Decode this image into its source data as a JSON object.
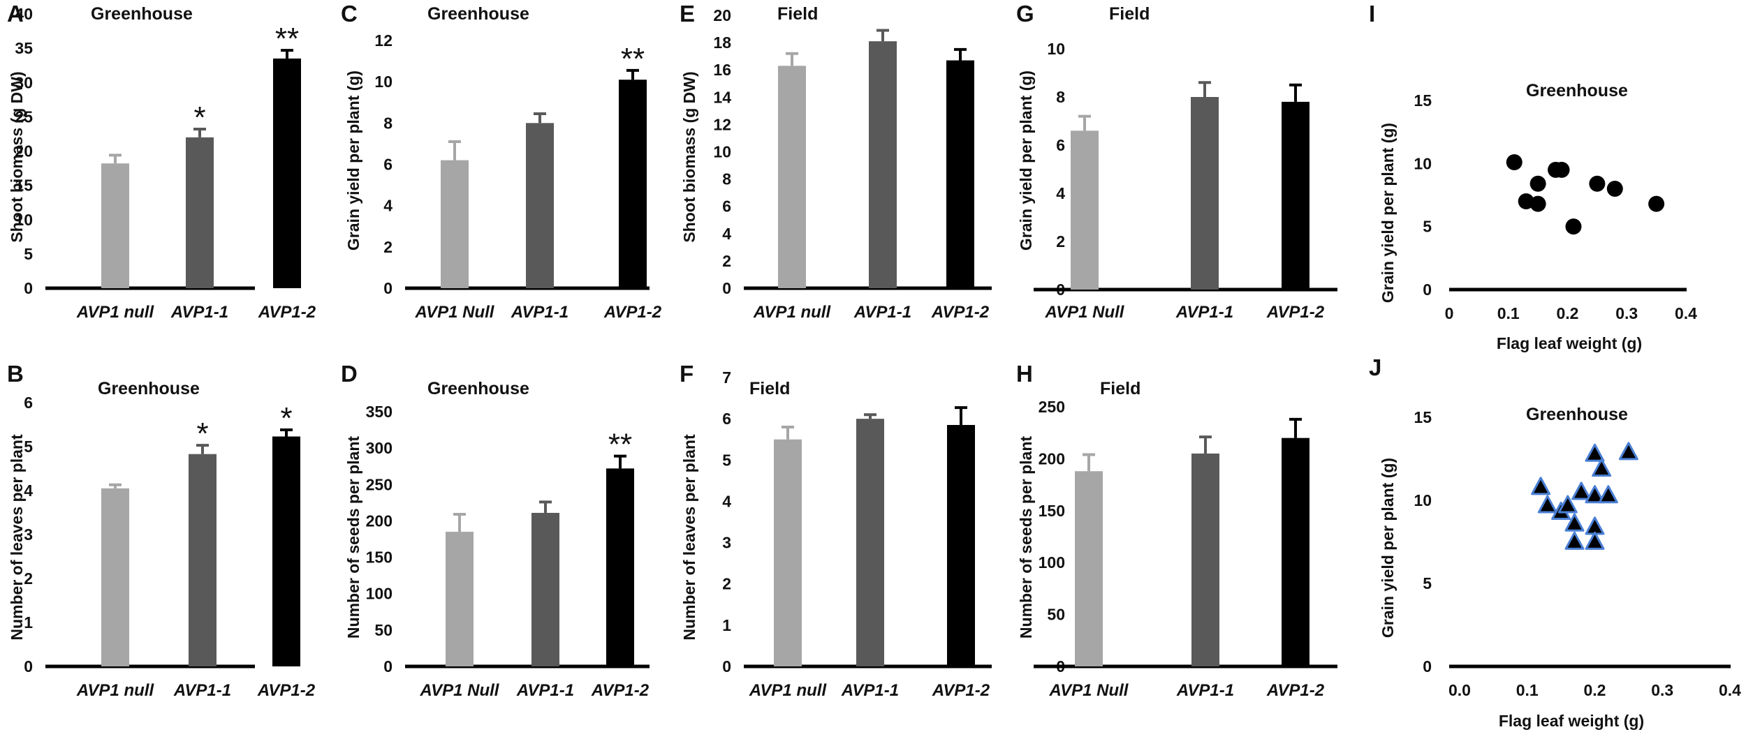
{
  "chart_data": [
    {
      "id": "A",
      "type": "bar",
      "letter": "A",
      "title": "Greenhouse",
      "ylabel": "Shoot biomass (g DW)",
      "xlabel": "",
      "ylim": [
        0,
        40
      ],
      "yticks": [
        0,
        5,
        10,
        15,
        20,
        25,
        30,
        35,
        40
      ],
      "categories": [
        "AVP1 null",
        "AVP1-1",
        "AVP1-2"
      ],
      "values": [
        18.2,
        22.0,
        33.5
      ],
      "errors": [
        1.2,
        1.2,
        1.2
      ],
      "significance": [
        "",
        "*",
        "**"
      ],
      "colors": [
        "#a6a6a6",
        "#595959",
        "#000000"
      ]
    },
    {
      "id": "C",
      "type": "bar",
      "letter": "C",
      "title": "Greenhouse",
      "ylabel": "Grain yield per plant (g)",
      "xlabel": "",
      "ylim": [
        0,
        12
      ],
      "yticks": [
        0,
        2,
        4,
        6,
        8,
        10,
        12
      ],
      "categories": [
        "AVP1 Null",
        "AVP1-1",
        "AVP1-2"
      ],
      "values": [
        6.2,
        8.0,
        10.1
      ],
      "errors": [
        0.9,
        0.45,
        0.45
      ],
      "significance": [
        "",
        "",
        "**"
      ],
      "colors": [
        "#a6a6a6",
        "#595959",
        "#000000"
      ]
    },
    {
      "id": "E",
      "type": "bar",
      "letter": "E",
      "title": "Field",
      "ylabel": "Shoot biomass (g DW)",
      "xlabel": "",
      "ylim": [
        0,
        20
      ],
      "yticks": [
        0,
        2,
        4,
        6,
        8,
        10,
        12,
        14,
        16,
        18,
        20
      ],
      "categories": [
        "AVP1 null",
        "AVP1-1",
        "AVP1-2"
      ],
      "values": [
        16.3,
        18.1,
        16.7
      ],
      "errors": [
        0.9,
        0.8,
        0.8
      ],
      "significance": [
        "",
        "",
        ""
      ],
      "colors": [
        "#a6a6a6",
        "#595959",
        "#000000"
      ]
    },
    {
      "id": "G",
      "type": "bar",
      "letter": "G",
      "title": "Field",
      "ylabel": "Grain yield per plant (g)",
      "xlabel": "",
      "ylim": [
        0,
        10
      ],
      "yticks": [
        0,
        2,
        4,
        6,
        8,
        10
      ],
      "categories": [
        "AVP1 Null",
        "AVP1-1",
        "AVP1-2"
      ],
      "values": [
        6.6,
        8.0,
        7.8
      ],
      "errors": [
        0.6,
        0.6,
        0.7
      ],
      "significance": [
        "",
        "",
        ""
      ],
      "colors": [
        "#a6a6a6",
        "#595959",
        "#000000"
      ]
    },
    {
      "id": "I",
      "type": "scatter",
      "letter": "I",
      "title": "Greenhouse",
      "ylabel": "Grain yield per plant (g)",
      "xlabel": "Flag leaf weight (g)",
      "xlim": [
        0,
        0.4
      ],
      "ylim": [
        0,
        15
      ],
      "xticks": [
        0,
        0.1,
        0.2,
        0.3,
        0.4
      ],
      "xticklabels": [
        "0",
        "0.1",
        "0.2",
        "0.3",
        "0.4"
      ],
      "yticks": [
        0,
        5,
        10,
        15
      ],
      "yticklabels": [
        "0",
        "5",
        "10",
        "15"
      ],
      "marker": "circle",
      "marker_color": "#000000",
      "x": [
        0.11,
        0.13,
        0.15,
        0.15,
        0.18,
        0.19,
        0.21,
        0.25,
        0.28,
        0.35
      ],
      "y": [
        10.1,
        7.0,
        8.4,
        6.8,
        9.5,
        9.5,
        5.0,
        8.4,
        8.0,
        6.8
      ]
    },
    {
      "id": "B",
      "type": "bar",
      "letter": "B",
      "title": "Greenhouse",
      "ylabel": "Number of leaves per plant",
      "xlabel": "",
      "ylim": [
        0,
        6
      ],
      "yticks": [
        0,
        1,
        2,
        3,
        4,
        5,
        6
      ],
      "categories": [
        "AVP1 null",
        "AVP1-1",
        "AVP1-2"
      ],
      "values": [
        4.05,
        4.83,
        5.23
      ],
      "errors": [
        0.08,
        0.2,
        0.15
      ],
      "significance": [
        "",
        "*",
        "*"
      ],
      "colors": [
        "#a6a6a6",
        "#595959",
        "#000000"
      ]
    },
    {
      "id": "D",
      "type": "bar",
      "letter": "D",
      "title": "Greenhouse",
      "ylabel": "Number of seeds per plant",
      "xlabel": "",
      "ylim": [
        0,
        350
      ],
      "yticks": [
        0,
        50,
        100,
        150,
        200,
        250,
        300,
        350
      ],
      "categories": [
        "AVP1 Null",
        "AVP1-1",
        "AVP1-2"
      ],
      "values": [
        185,
        211,
        272
      ],
      "errors": [
        24,
        15,
        17
      ],
      "significance": [
        "",
        "",
        "**"
      ],
      "colors": [
        "#a6a6a6",
        "#595959",
        "#000000"
      ]
    },
    {
      "id": "F",
      "type": "bar",
      "letter": "F",
      "title": "Field",
      "ylabel": "Number of leaves per plant",
      "xlabel": "",
      "ylim": [
        0,
        7
      ],
      "yticks": [
        0,
        1,
        2,
        3,
        4,
        5,
        6,
        7
      ],
      "categories": [
        "AVP1 null",
        "AVP1-1",
        "AVP1-2"
      ],
      "values": [
        5.5,
        6.0,
        5.85
      ],
      "errors": [
        0.3,
        0.1,
        0.42
      ],
      "significance": [
        "",
        "",
        ""
      ],
      "colors": [
        "#a6a6a6",
        "#595959",
        "#000000"
      ]
    },
    {
      "id": "H",
      "type": "bar",
      "letter": "H",
      "title": "Field",
      "ylabel": "Number of seeds per plant",
      "xlabel": "",
      "ylim": [
        0,
        250
      ],
      "yticks": [
        0,
        50,
        100,
        150,
        200,
        250
      ],
      "categories": [
        "AVP1 Null",
        "AVP1-1",
        "AVP1-2"
      ],
      "values": [
        188,
        205,
        220
      ],
      "errors": [
        16,
        16,
        18
      ],
      "significance": [
        "",
        "",
        ""
      ],
      "colors": [
        "#a6a6a6",
        "#595959",
        "#000000"
      ]
    },
    {
      "id": "J",
      "type": "scatter",
      "letter": "J",
      "title": "Greenhouse",
      "ylabel": "Grain yield per plant (g)",
      "xlabel": "Flag leaf weight (g)",
      "xlim": [
        0,
        0.4
      ],
      "ylim": [
        0,
        15
      ],
      "xticks": [
        0,
        0.1,
        0.2,
        0.3,
        0.4
      ],
      "xticklabels": [
        "0.0",
        "0.1",
        "0.2",
        "0.3",
        "0.4"
      ],
      "yticks": [
        0,
        5,
        10,
        15
      ],
      "yticklabels": [
        "0",
        "5",
        "10",
        "15"
      ],
      "marker": "triangle",
      "marker_color": "#000000",
      "marker_edge": "#4a7fd4",
      "x": [
        0.12,
        0.13,
        0.15,
        0.16,
        0.17,
        0.17,
        0.18,
        0.2,
        0.2,
        0.2,
        0.2,
        0.21,
        0.22,
        0.25
      ],
      "y": [
        10.8,
        9.7,
        9.3,
        9.7,
        8.6,
        7.5,
        10.5,
        12.8,
        10.3,
        8.4,
        7.5,
        11.9,
        10.3,
        12.9
      ]
    }
  ]
}
